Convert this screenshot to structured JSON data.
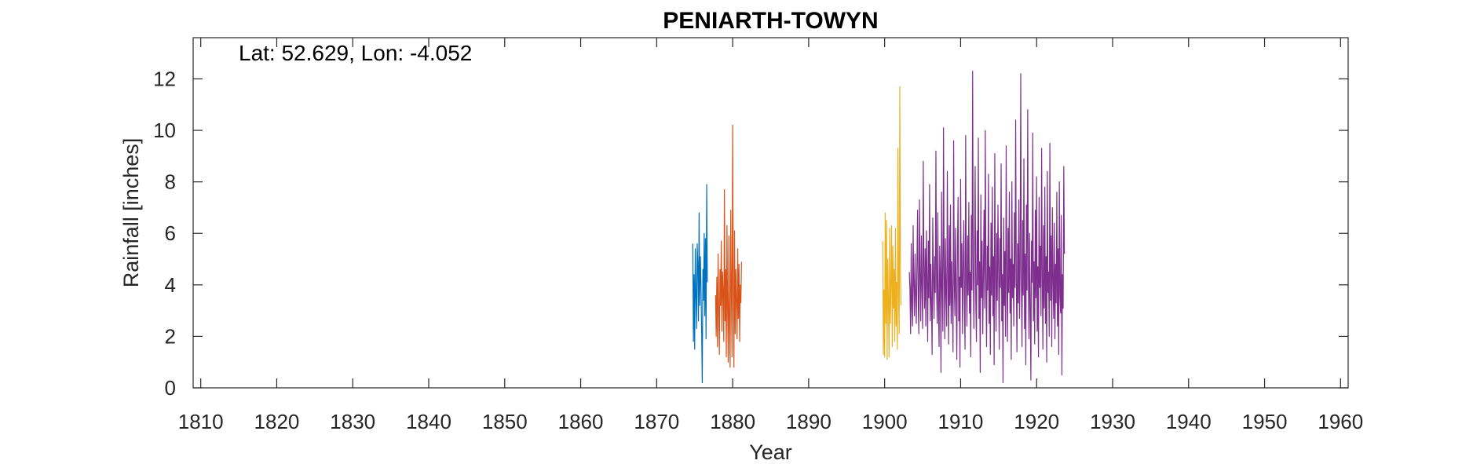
{
  "chart_data": {
    "type": "line",
    "title": "PENIARTH-TOWYN",
    "xlabel": "Year",
    "ylabel": "Rainfall [inches]",
    "annotation": "Lat: 52.629, Lon: -4.052",
    "xlim": [
      1809,
      1961
    ],
    "ylim": [
      0,
      13.6
    ],
    "xticks": [
      1810,
      1820,
      1830,
      1840,
      1850,
      1860,
      1870,
      1880,
      1890,
      1900,
      1910,
      1920,
      1930,
      1940,
      1950,
      1960
    ],
    "yticks": [
      0,
      2,
      4,
      6,
      8,
      10,
      12
    ],
    "grid": false,
    "box": true,
    "series": [
      {
        "color": "#0072BD",
        "start_year": 1874.75,
        "step": 0.0833,
        "values": [
          5.6,
          1.8,
          4.4,
          1.5,
          5.4,
          3.6,
          2.3,
          5.6,
          4.8,
          2.6,
          6.8,
          3.2,
          5.1,
          4.0,
          2.2,
          0.2,
          4.6,
          3.4,
          6.0,
          2.8,
          5.8,
          1.9,
          7.9,
          4.1
        ]
      },
      {
        "color": "#D95319",
        "start_year": 1877.75,
        "step": 0.0833,
        "values": [
          3.6,
          2.0,
          4.3,
          1.6,
          5.2,
          3.0,
          1.3,
          4.6,
          3.2,
          5.7,
          2.2,
          4.5,
          3.7,
          1.8,
          7.7,
          2.6,
          4.6,
          1.2,
          6.3,
          3.1,
          1.0,
          5.9,
          2.4,
          0.8,
          6.9,
          3.7,
          1.2,
          10.2,
          4.0,
          0.8,
          6.1,
          2.1,
          4.6,
          3.4,
          1.9,
          5.4,
          2.7,
          4.8,
          1.8,
          4.0,
          3.3,
          4.9
        ]
      },
      {
        "color": "#EDB120",
        "start_year": 1899.75,
        "step": 0.0833,
        "values": [
          5.7,
          1.3,
          3.8,
          1.2,
          6.8,
          2.5,
          6.5,
          1.1,
          5.0,
          3.3,
          1.2,
          6.2,
          2.5,
          4.0,
          6.3,
          1.6,
          5.5,
          3.1,
          4.6,
          1.8,
          6.2,
          2.4,
          4.1,
          1.5,
          9.3,
          3.6,
          2.1,
          11.7,
          4.2,
          3.2
        ]
      },
      {
        "color": "#7E2F8E",
        "start_year": 1903.25,
        "step": 0.0833,
        "values": [
          4.5,
          3.8,
          2.1,
          5.6,
          3.1,
          2.4,
          6.3,
          4.0,
          2.8,
          5.2,
          3.6,
          2.5,
          4.8,
          6.9,
          3.4,
          2.1,
          7.3,
          4.4,
          2.6,
          5.9,
          3.9,
          2.3,
          8.8,
          4.6,
          3.1,
          5.4,
          2.4,
          6.1,
          4.2,
          1.8,
          5.7,
          3.5,
          7.9,
          2.6,
          4.8,
          3.3,
          1.3,
          6.6,
          4.4,
          2.7,
          5.1,
          3.7,
          9.2,
          4.0,
          2.5,
          6.8,
          3.1,
          1.6,
          5.5,
          4.3,
          0.6,
          7.6,
          3.8,
          2.2,
          10.1,
          4.6,
          1.9,
          5.8,
          3.6,
          2.4,
          8.4,
          4.5,
          1.7,
          6.3,
          3.2,
          7.1,
          2.5,
          4.9,
          3.4,
          1.4,
          9.6,
          4.1,
          2.8,
          6.2,
          3.7,
          1.1,
          5.4,
          7.4,
          2.6,
          4.3,
          0.8,
          8.1,
          3.9,
          5.6,
          2.1,
          4.7,
          6.5,
          3.3,
          1.5,
          9.8,
          4.2,
          2.4,
          5.9,
          3.6,
          7.2,
          2.9,
          4.5,
          1.2,
          6.7,
          3.8,
          12.3,
          4.6,
          2.3,
          5.3,
          8.6,
          3.4,
          1.8,
          6.1,
          4.0,
          9.7,
          2.7,
          4.9,
          0.6,
          7.5,
          3.5,
          5.7,
          2.1,
          4.4,
          6.9,
          3.1,
          10.0,
          4.2,
          1.6,
          5.5,
          3.8,
          8.3,
          2.5,
          4.7,
          1.3,
          6.4,
          3.6,
          7.8,
          2.8,
          5.1,
          0.9,
          9.1,
          4.3,
          2.2,
          6.0,
          3.4,
          7.1,
          4.6,
          1.5,
          5.8,
          3.9,
          8.7,
          2.6,
          4.4,
          0.2,
          6.6,
          3.2,
          5.3,
          2.0,
          9.4,
          4.1,
          1.8,
          6.2,
          3.7,
          7.6,
          2.9,
          5.0,
          1.1,
          8.0,
          3.5,
          4.8,
          2.4,
          6.8,
          3.9,
          10.4,
          4.2,
          1.4,
          5.6,
          3.3,
          7.3,
          2.7,
          4.6,
          12.2,
          4.0,
          1.6,
          6.5,
          3.6,
          8.9,
          2.3,
          5.2,
          0.9,
          7.1,
          3.8,
          10.8,
          4.4,
          1.9,
          6.0,
          3.2,
          0.3,
          5.7,
          4.1,
          9.9,
          2.6,
          4.9,
          1.7,
          6.9,
          3.5,
          8.2,
          2.2,
          4.7,
          1.2,
          7.4,
          3.9,
          5.5,
          2.8,
          9.3,
          4.3,
          1.5,
          6.3,
          3.1,
          7.8,
          2.5,
          5.1,
          1.0,
          8.4,
          3.7,
          4.5,
          2.0,
          9.5,
          3.4,
          5.9,
          1.6,
          7.0,
          4.2,
          2.7,
          6.4,
          1.9,
          4.8,
          3.3,
          7.6,
          2.4,
          5.4,
          1.3,
          8.0,
          3.6,
          2.9,
          6.7,
          0.5,
          4.4,
          3.1,
          8.6,
          5.2
        ]
      }
    ]
  }
}
